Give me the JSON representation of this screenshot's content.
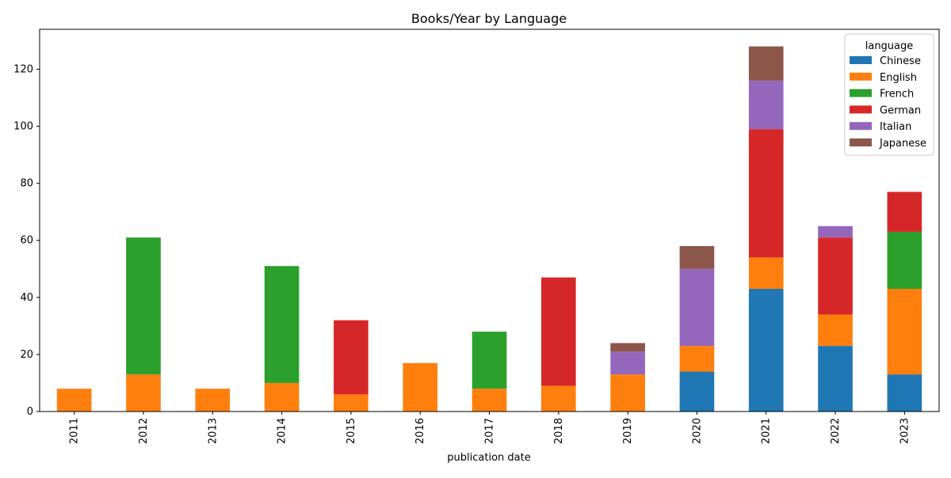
{
  "chart_data": {
    "type": "bar",
    "stacked": true,
    "title": "Books/Year by Language",
    "xlabel": "publication date",
    "ylabel": "",
    "categories": [
      "2011",
      "2012",
      "2013",
      "2014",
      "2015",
      "2016",
      "2017",
      "2018",
      "2019",
      "2020",
      "2021",
      "2022",
      "2023"
    ],
    "ylim": [
      0,
      134
    ],
    "yticks": [
      0,
      20,
      40,
      60,
      80,
      100,
      120
    ],
    "grid": false,
    "legend": {
      "title": "language",
      "placement": "top-right"
    },
    "series": [
      {
        "name": "Chinese",
        "color": "#1f77b4",
        "values": [
          0,
          0,
          0,
          0,
          0,
          0,
          0,
          0,
          0,
          14,
          43,
          23,
          13
        ]
      },
      {
        "name": "English",
        "color": "#ff7f0e",
        "values": [
          8,
          13,
          8,
          10,
          6,
          17,
          8,
          9,
          13,
          9,
          11,
          11,
          30
        ]
      },
      {
        "name": "French",
        "color": "#2ca02c",
        "values": [
          0,
          48,
          0,
          41,
          0,
          0,
          20,
          0,
          0,
          0,
          0,
          0,
          20
        ]
      },
      {
        "name": "German",
        "color": "#d62728",
        "values": [
          0,
          0,
          0,
          0,
          26,
          0,
          0,
          38,
          0,
          0,
          45,
          27,
          14
        ]
      },
      {
        "name": "Italian",
        "color": "#9467bd",
        "values": [
          0,
          0,
          0,
          0,
          0,
          0,
          0,
          0,
          8,
          27,
          17,
          4,
          0
        ]
      },
      {
        "name": "Japanese",
        "color": "#8c564b",
        "values": [
          0,
          0,
          0,
          0,
          0,
          0,
          0,
          0,
          3,
          8,
          12,
          0,
          0
        ]
      }
    ]
  }
}
